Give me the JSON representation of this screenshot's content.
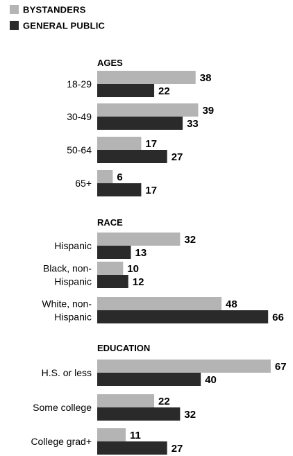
{
  "chart_data": {
    "type": "bar",
    "orientation": "horizontal",
    "legend": {
      "placement": "top-left",
      "entries": [
        {
          "name": "BYSTANDERS",
          "color": "#b4b4b4"
        },
        {
          "name": "GENERAL PUBLIC",
          "color": "#2a2a2a"
        }
      ]
    },
    "series": [
      {
        "name": "BYSTANDERS",
        "color": "#b4b4b4"
      },
      {
        "name": "GENERAL PUBLIC",
        "color": "#2a2a2a"
      }
    ],
    "xlim": [
      0,
      70
    ],
    "grid": false,
    "groups": [
      {
        "label": "AGES",
        "categories": [
          {
            "label": [
              "18-29"
            ],
            "values": [
              38,
              22
            ]
          },
          {
            "label": [
              "30-49"
            ],
            "values": [
              39,
              33
            ]
          },
          {
            "label": [
              "50-64"
            ],
            "values": [
              17,
              27
            ]
          },
          {
            "label": [
              "65+"
            ],
            "values": [
              6,
              17
            ]
          }
        ]
      },
      {
        "label": "RACE",
        "categories": [
          {
            "label": [
              "Hispanic"
            ],
            "values": [
              32,
              13
            ]
          },
          {
            "label": [
              "Black, non-",
              "Hispanic"
            ],
            "values": [
              10,
              12
            ]
          },
          {
            "label": [
              "White, non-",
              "Hispanic"
            ],
            "values": [
              48,
              66
            ]
          }
        ]
      },
      {
        "label": "EDUCATION",
        "categories": [
          {
            "label": [
              "H.S. or less"
            ],
            "values": [
              67,
              40
            ]
          },
          {
            "label": [
              "Some college"
            ],
            "values": [
              22,
              32
            ]
          },
          {
            "label": [
              "College grad+"
            ],
            "values": [
              11,
              27
            ]
          }
        ]
      }
    ]
  }
}
